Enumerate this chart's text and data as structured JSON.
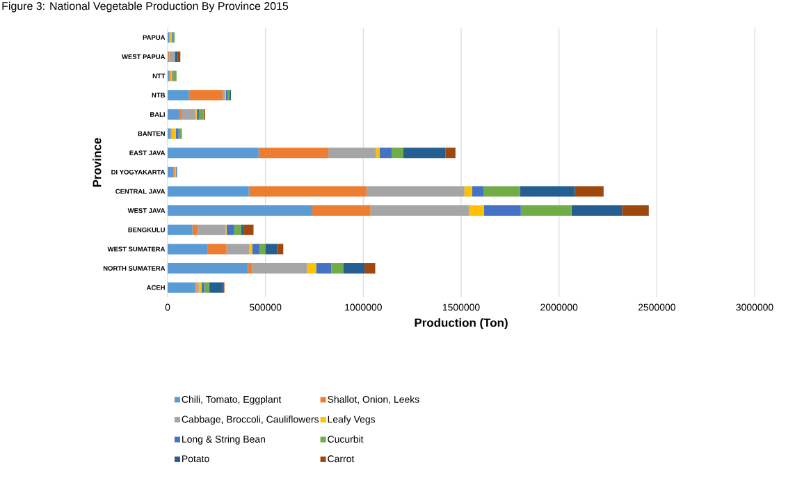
{
  "chart_data": {
    "type": "bar",
    "orientation": "horizontal",
    "stacked": true,
    "title": "Figure 3: National Vegetable Production By Province 2015",
    "xlabel": "Production (Ton)",
    "ylabel": "Province",
    "categories": [
      "PAPUA",
      "WEST PAPUA",
      "NTT",
      "NTB",
      "BALI",
      "BANTEN",
      "EAST JAVA",
      "DI YOGYAKARTA",
      "CENTRAL JAVA",
      "WEST JAVA",
      "BENGKULU",
      "WEST SUMATERA",
      "NORTH SUMATERA",
      "ACEH"
    ],
    "series": [
      {
        "name": "Chili, Tomato, Eggplant",
        "color": "#5b9bd5",
        "values": [
          8000,
          2000,
          9500,
          109000,
          60000,
          14000,
          465000,
          31000,
          415000,
          739000,
          127000,
          203000,
          411000,
          140000
        ]
      },
      {
        "name": "Shallot, Onion, Leeks",
        "color": "#ed7d31",
        "values": [
          3500,
          7000,
          4700,
          172000,
          10700,
          0,
          356000,
          6000,
          601000,
          298000,
          27000,
          98000,
          21000,
          8000
        ]
      },
      {
        "name": "Cabbage, Broccoli, Cauliflowers",
        "color": "#a5a5a5",
        "values": [
          2400,
          28000,
          0,
          13000,
          71000,
          7000,
          244000,
          0,
          501000,
          502000,
          141000,
          117000,
          281000,
          11000
        ]
      },
      {
        "name": "Leafy Vegs",
        "color": "#ffc000",
        "values": [
          6000,
          0,
          9500,
          3500,
          7000,
          21000,
          19000,
          6000,
          39000,
          77000,
          6000,
          14000,
          46000,
          14000
        ]
      },
      {
        "name": "Long & String Bean",
        "color": "#4472c4",
        "values": [
          6000,
          0,
          7000,
          10700,
          14000,
          14000,
          61000,
          5000,
          60000,
          189000,
          39000,
          39000,
          78000,
          14000
        ]
      },
      {
        "name": "Cucurbit",
        "color": "#70ad47",
        "values": [
          10000,
          0,
          15000,
          7000,
          21000,
          17000,
          60000,
          0,
          185000,
          259000,
          36000,
          28000,
          60000,
          25000
        ]
      },
      {
        "name": "Potato",
        "color": "#255e91",
        "values": [
          0,
          15000,
          0,
          8300,
          0,
          0,
          214000,
          0,
          280000,
          258000,
          14000,
          60000,
          109000,
          71000
        ]
      },
      {
        "name": "Carrot",
        "color": "#9e480e",
        "values": [
          0,
          13000,
          0,
          0,
          7000,
          0,
          52000,
          0,
          147000,
          137000,
          49000,
          32000,
          55000,
          7000
        ]
      }
    ],
    "xlim": [
      0,
      3000000
    ],
    "xticks": [
      0,
      500000,
      1000000,
      1500000,
      2000000,
      2500000,
      3000000
    ],
    "grid": "x",
    "legend": "bottom"
  }
}
